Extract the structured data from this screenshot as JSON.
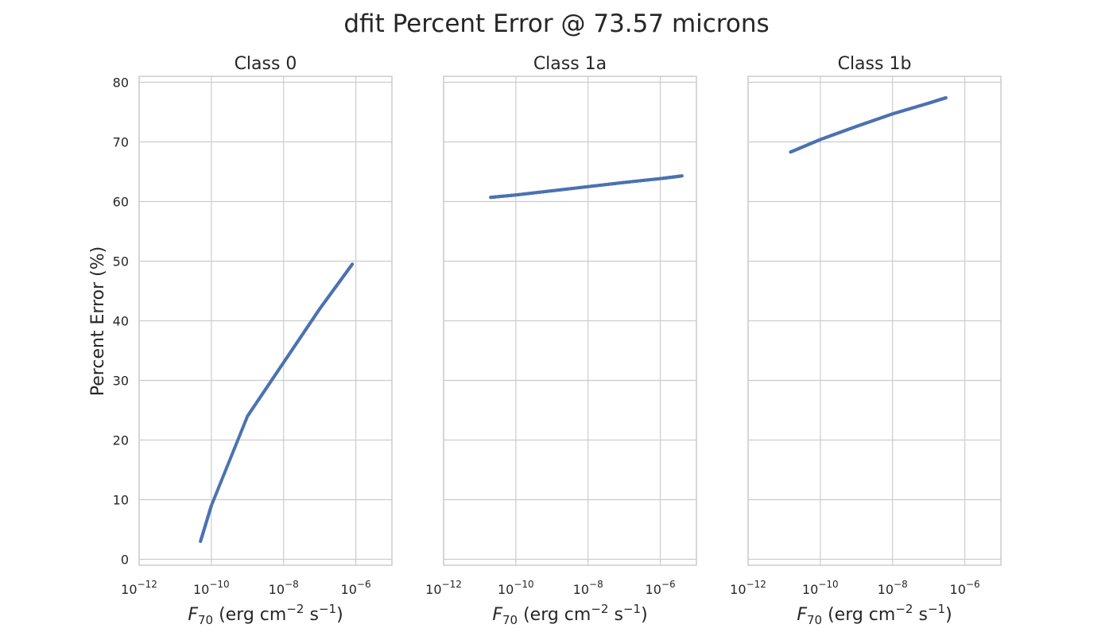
{
  "figure": {
    "title": "dfit Percent Error @ 73.57 microns",
    "ylabel": "Percent Error (%)"
  },
  "chart_data": [
    {
      "type": "scatter",
      "title": "Class 0",
      "xlabel": {
        "var": "F",
        "sub": "70",
        "units": "(erg cm",
        "exp1": "−2",
        "mid": " s",
        "exp2": "−1",
        "end": ")"
      },
      "xscale": "log",
      "xlim": [
        1e-12,
        1e-05
      ],
      "ylim": [
        -1,
        81
      ],
      "xticks": [
        {
          "base": "10",
          "exp": "−12",
          "value": 1e-12
        },
        {
          "base": "10",
          "exp": "−10",
          "value": 1e-10
        },
        {
          "base": "10",
          "exp": "−8",
          "value": 1e-08
        },
        {
          "base": "10",
          "exp": "−6",
          "value": 1e-06
        }
      ],
      "yticks": [
        0,
        10,
        20,
        30,
        40,
        50,
        60,
        70,
        80
      ],
      "grid": true,
      "color": "#4c72b0",
      "x": [
        5e-11,
        1e-10,
        1e-09,
        1e-08,
        1e-07,
        8e-07
      ],
      "y": [
        3,
        9,
        24,
        33,
        42,
        49.5
      ]
    },
    {
      "type": "scatter",
      "title": "Class 1a",
      "xlabel": {
        "var": "F",
        "sub": "70",
        "units": "(erg cm",
        "exp1": "−2",
        "mid": " s",
        "exp2": "−1",
        "end": ")"
      },
      "xscale": "log",
      "xlim": [
        1e-12,
        1e-05
      ],
      "ylim": [
        -1,
        81
      ],
      "xticks": [
        {
          "base": "10",
          "exp": "−12",
          "value": 1e-12
        },
        {
          "base": "10",
          "exp": "−10",
          "value": 1e-10
        },
        {
          "base": "10",
          "exp": "−8",
          "value": 1e-08
        },
        {
          "base": "10",
          "exp": "−6",
          "value": 1e-06
        }
      ],
      "yticks": [
        0,
        10,
        20,
        30,
        40,
        50,
        60,
        70,
        80
      ],
      "grid": true,
      "color": "#4c72b0",
      "x": [
        2e-11,
        1e-10,
        1e-09,
        1e-08,
        1e-07,
        1.2e-06,
        4e-06
      ],
      "y": [
        60.7,
        61.1,
        61.8,
        62.5,
        63.2,
        63.9,
        64.3
      ]
    },
    {
      "type": "scatter",
      "title": "Class 1b",
      "xlabel": {
        "var": "F",
        "sub": "70",
        "units": "(erg cm",
        "exp1": "−2",
        "mid": " s",
        "exp2": "−1",
        "end": ")"
      },
      "xscale": "log",
      "xlim": [
        1e-12,
        1e-05
      ],
      "ylim": [
        -1,
        81
      ],
      "xticks": [
        {
          "base": "10",
          "exp": "−12",
          "value": 1e-12
        },
        {
          "base": "10",
          "exp": "−10",
          "value": 1e-10
        },
        {
          "base": "10",
          "exp": "−8",
          "value": 1e-08
        },
        {
          "base": "10",
          "exp": "−6",
          "value": 1e-06
        }
      ],
      "yticks": [
        0,
        10,
        20,
        30,
        40,
        50,
        60,
        70,
        80
      ],
      "grid": true,
      "color": "#4c72b0",
      "x": [
        1.5e-11,
        1e-10,
        1e-09,
        1e-08,
        1e-07,
        3e-07
      ],
      "y": [
        68.3,
        70.4,
        72.6,
        74.7,
        76.5,
        77.4
      ]
    }
  ]
}
